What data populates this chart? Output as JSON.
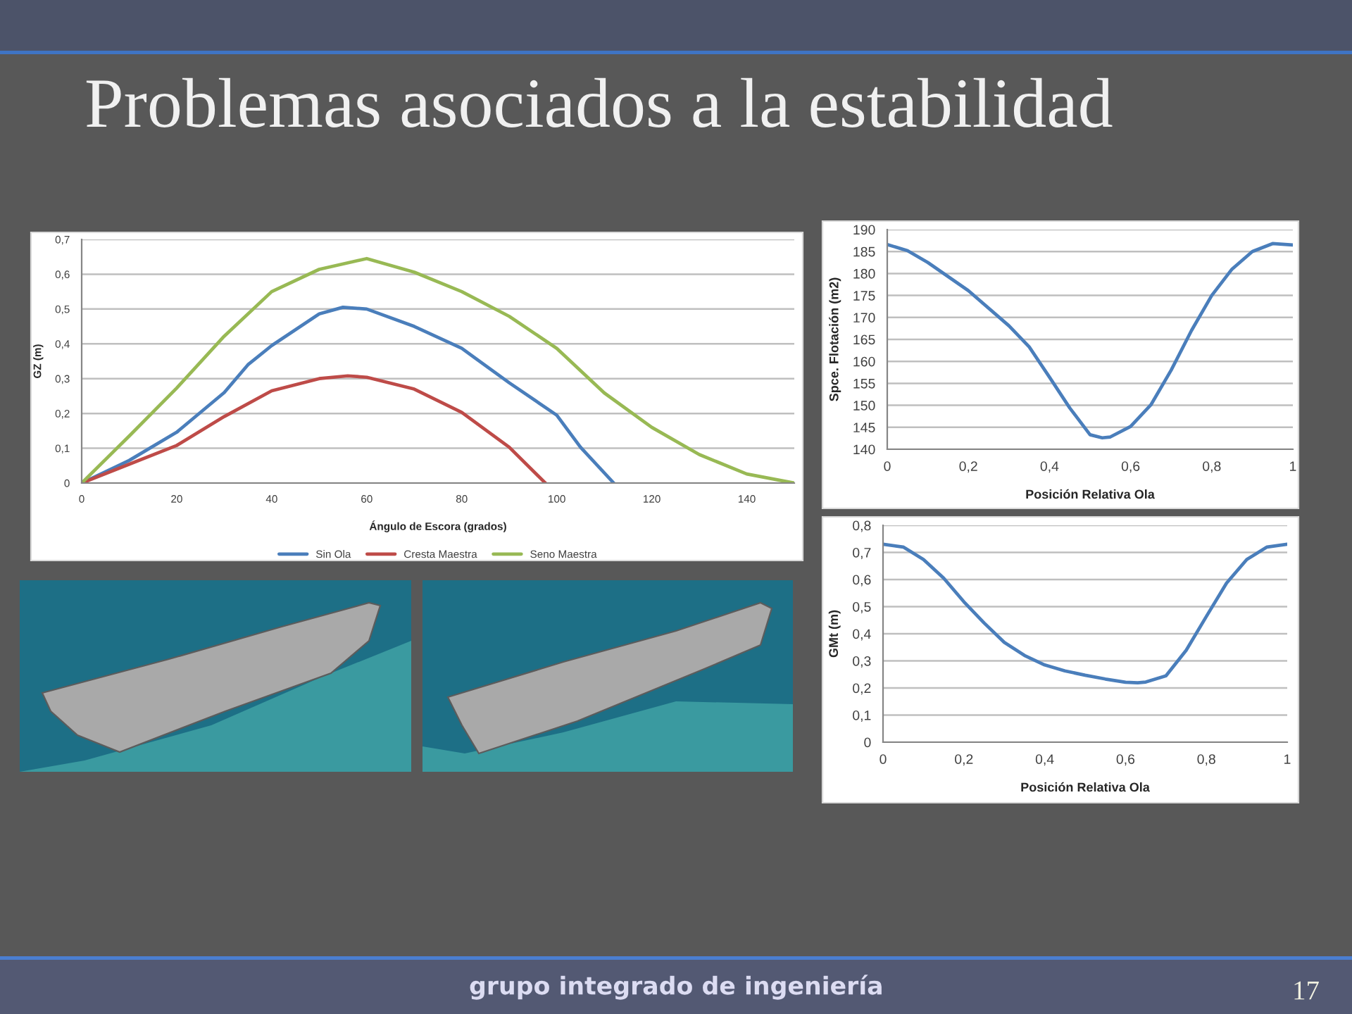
{
  "chart_data": [
    {
      "type": "line",
      "title": "Problemas asociados a la estabilidad",
      "xlabel": "Ángulo de Escora (grados)",
      "ylabel": "GZ (m)",
      "series": [
        {
          "name": "Sin Ola",
          "color": "#4a7ebb",
          "x": [
            0,
            10,
            20,
            30,
            35,
            40,
            50,
            55,
            60,
            70,
            80,
            90,
            100,
            105,
            112
          ],
          "values": [
            0,
            0.065,
            0.146,
            0.26,
            0.34,
            0.395,
            0.486,
            0.505,
            0.5,
            0.45,
            0.387,
            0.288,
            0.195,
            0.103,
            0
          ]
        },
        {
          "name": "Cresta Maestra",
          "color": "#be4b48",
          "x": [
            0,
            10,
            20,
            30,
            40,
            50,
            56,
            60,
            70,
            80,
            90,
            97.6
          ],
          "values": [
            0,
            0.054,
            0.108,
            0.191,
            0.265,
            0.3,
            0.308,
            0.304,
            0.27,
            0.203,
            0.103,
            0
          ]
        },
        {
          "name": "Seno Maestra",
          "color": "#98b954",
          "x": [
            0,
            10,
            20,
            30,
            40,
            50,
            60,
            70,
            80,
            90,
            100,
            110,
            120,
            130,
            140,
            150
          ],
          "values": [
            0,
            0.135,
            0.273,
            0.422,
            0.55,
            0.614,
            0.645,
            0.606,
            0.55,
            0.479,
            0.387,
            0.259,
            0.16,
            0.082,
            0.026,
            0
          ]
        }
      ],
      "xlim": [
        0,
        150
      ],
      "xticks": [
        0,
        20,
        40,
        60,
        80,
        100,
        120,
        140
      ],
      "ylim": [
        0,
        0.7
      ],
      "yticks": [
        0,
        {
          "value": 0.1,
          "label": "0,1"
        },
        {
          "value": 0.2,
          "label": "0,2"
        },
        {
          "value": 0.3,
          "label": "0,3"
        },
        {
          "value": 0.4,
          "label": "0,4"
        },
        {
          "value": 0.5,
          "label": "0,5"
        },
        {
          "value": 0.6,
          "label": "0,6"
        },
        {
          "value": 0.7,
          "label": "0,7"
        }
      ],
      "grid": "y",
      "legend": "bottom",
      "annotations": [
        "grupo integrado de ingeniería",
        "17"
      ]
    },
    {
      "type": "line",
      "xlabel": "Posición Relativa Ola",
      "ylabel": "Spce. Flotación (m2)",
      "series": [
        {
          "color": "#4a7ebb",
          "x": [
            0,
            0.05,
            0.1,
            0.2,
            0.3,
            0.35,
            0.4,
            0.45,
            0.5,
            0.53,
            0.55,
            0.6,
            0.65,
            0.7,
            0.75,
            0.8,
            0.85,
            0.9,
            0.95,
            1
          ],
          "values": [
            186.6,
            185.2,
            182.5,
            176.1,
            168.1,
            163.3,
            156.4,
            149.4,
            143.3,
            142.6,
            142.8,
            145.2,
            150.1,
            158,
            167,
            175,
            181,
            185,
            186.8,
            186.5
          ]
        }
      ],
      "xlim": [
        0,
        1
      ],
      "xticks": [
        0,
        {
          "value": 0.2,
          "label": "0,2"
        },
        {
          "value": 0.4,
          "label": "0,4"
        },
        {
          "value": 0.6,
          "label": "0,6"
        },
        {
          "value": 0.8,
          "label": "0,8"
        },
        1
      ],
      "ylim": [
        140,
        190
      ],
      "yticks": [
        140,
        145,
        150,
        155,
        160,
        165,
        170,
        175,
        180,
        185,
        190
      ],
      "grid": "y"
    },
    {
      "type": "line",
      "xlabel": "Posición Relativa Ola",
      "ylabel": "GMt (m)",
      "series": [
        {
          "color": "#4a7ebb",
          "x": [
            0,
            0.05,
            0.1,
            0.15,
            0.2,
            0.25,
            0.3,
            0.35,
            0.4,
            0.45,
            0.5,
            0.55,
            0.6,
            0.63,
            0.65,
            0.7,
            0.75,
            0.8,
            0.85,
            0.9,
            0.95,
            1
          ],
          "values": [
            0.73,
            0.72,
            0.674,
            0.605,
            0.518,
            0.44,
            0.368,
            0.32,
            0.285,
            0.263,
            0.247,
            0.233,
            0.221,
            0.219,
            0.222,
            0.245,
            0.339,
            0.464,
            0.587,
            0.674,
            0.72,
            0.73
          ]
        }
      ],
      "xlim": [
        0,
        1
      ],
      "xticks": [
        0,
        {
          "value": 0.2,
          "label": "0,2"
        },
        {
          "value": 0.4,
          "label": "0,4"
        },
        {
          "value": 0.6,
          "label": "0,6"
        },
        {
          "value": 0.8,
          "label": "0,8"
        },
        1
      ],
      "ylim": [
        0,
        0.8
      ],
      "yticks": [
        0,
        {
          "value": 0.1,
          "label": "0,1"
        },
        {
          "value": 0.2,
          "label": "0,2"
        },
        {
          "value": 0.3,
          "label": "0,3"
        },
        {
          "value": 0.4,
          "label": "0,4"
        },
        {
          "value": 0.5,
          "label": "0,5"
        },
        {
          "value": 0.6,
          "label": "0,6"
        },
        {
          "value": 0.7,
          "label": "0,7"
        },
        {
          "value": 0.8,
          "label": "0,8"
        }
      ],
      "grid": "y"
    }
  ]
}
